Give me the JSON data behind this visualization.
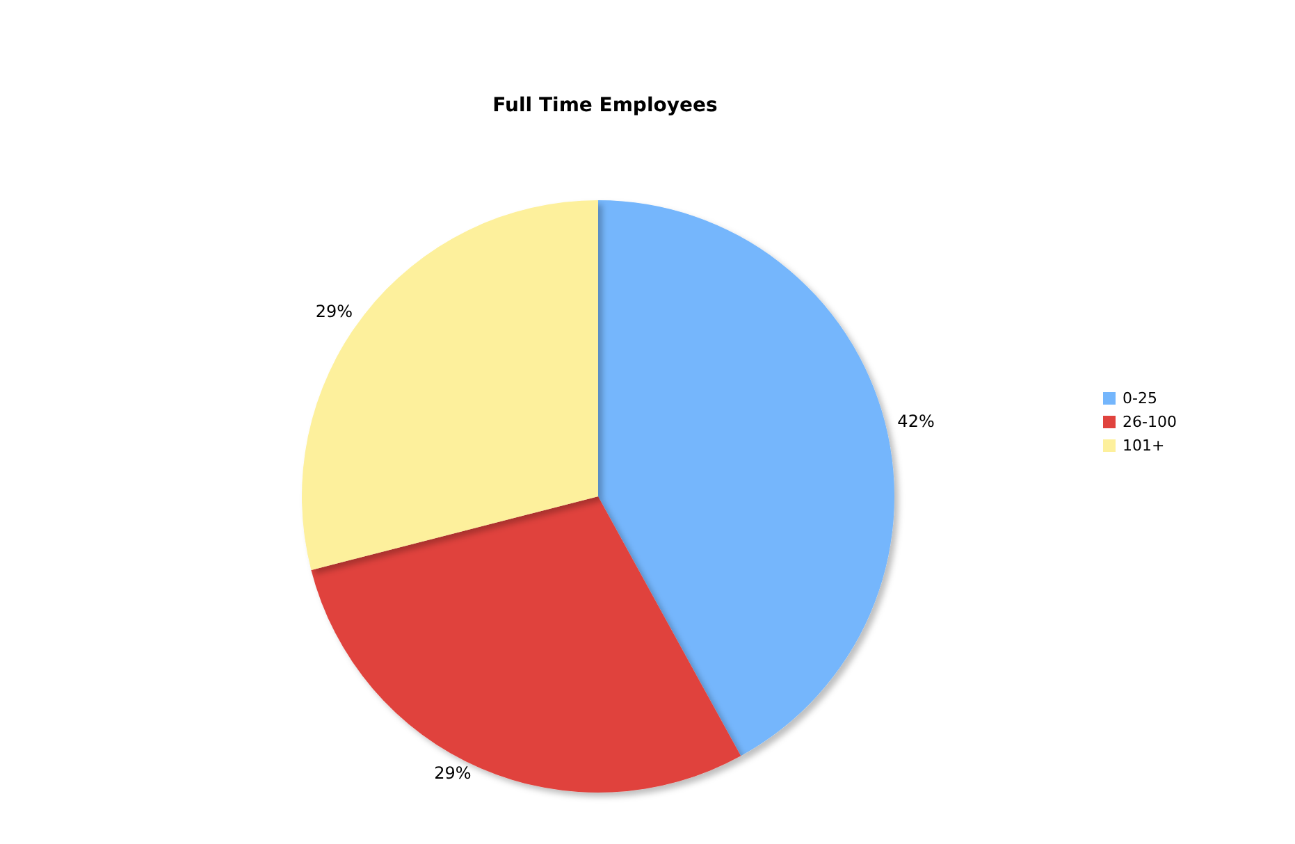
{
  "chart_data": {
    "type": "pie",
    "title": "Full Time Employees",
    "categories": [
      "0-25",
      "26-100",
      "101+"
    ],
    "values": [
      42,
      29,
      29
    ],
    "colors": [
      "#74b6fc",
      "#e0433e",
      "#fdf09c"
    ],
    "value_labels": [
      "42%",
      "29%",
      "29%"
    ],
    "legend": "right"
  }
}
